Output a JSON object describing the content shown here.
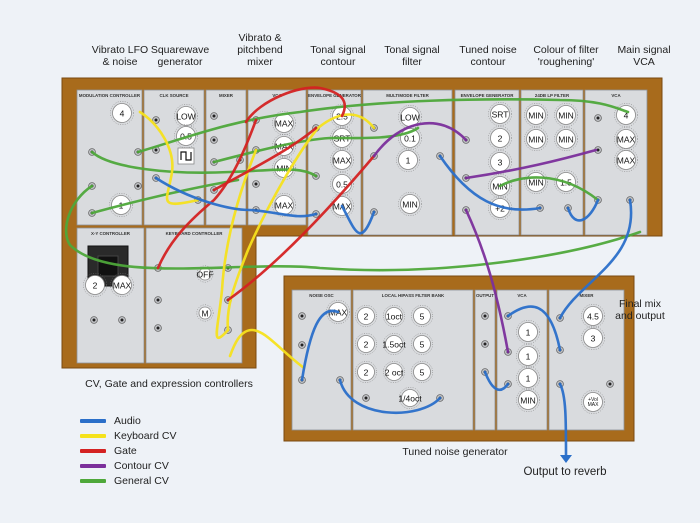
{
  "section_labels": {
    "vibrato_lfo": "Vibrato LFO\n& noise",
    "squarewave": "Squarewave\ngenerator",
    "vibrato_mixer": "Vibrato &\npitchbend\nmixer",
    "tonal_contour": "Tonal signal\ncontour",
    "tonal_filter": "Tonal signal\nfilter",
    "tuned_noise_contour": "Tuned noise\ncontour",
    "colour_filter": "Colour of filter\n'roughening'",
    "main_vca": "Main signal\nVCA",
    "final_mix": "Final mix\nand output",
    "cv_controllers": "CV, Gate and expression controllers",
    "tuned_noise_gen": "Tuned noise generator",
    "output": "Output to reverb"
  },
  "legend": [
    {
      "label": "Audio",
      "color": "#2a6fc9"
    },
    {
      "label": "Keyboard CV",
      "color": "#f5e21c"
    },
    {
      "label": "Gate",
      "color": "#d42222"
    },
    {
      "label": "Contour CV",
      "color": "#7b2f9b"
    },
    {
      "label": "General CV",
      "color": "#4ea83a"
    }
  ],
  "module_titles": {
    "modulation_controller": "MODULATION CONTROLLER",
    "clk_source": "CLK SOURCE",
    "mixer": "MIXER",
    "envelope_generator": "ENVELOPE GENERATOR",
    "multimode_filter": "MULTIMODE FILTER",
    "envelope_generator_2": "ENVELOPE GENERATOR",
    "lp_filter": "24DB LP FILTER",
    "vca": "VCA",
    "xy_controller": "X-Y CONTROLLER",
    "keyboard_controller": "KEYBOARD CONTROLLER",
    "noise_osc": "NOISE OSC",
    "filter_bank": "LOCAL HIPASS FILTER BANK",
    "output": "OUTPUT",
    "vca_2": "VCA",
    "mixer_2": "MIXER"
  },
  "knob_values": {
    "lfo_rate": "4",
    "lfo_depth": "1",
    "sq_a": "LOW",
    "sq_b": "0.5",
    "mx_a": "MAX",
    "mx_b": "MAX",
    "mx_c": "MIN",
    "mx_d": "MAX",
    "eg_a": "2.5",
    "eg_b": "SRT",
    "eg_c": "MAX",
    "eg_d": "0.5",
    "eg_e": "MAX",
    "fl_a": "LOW",
    "fl_b": "0.1",
    "fl_c": "1",
    "fl_d": "MIN",
    "eg2_a": "SRT",
    "eg2_b": "2",
    "eg2_c": "3",
    "eg2_d": "MIN",
    "eg2_e": "+2",
    "lp_a": "MIN",
    "lp_b": "MIN",
    "lp_c": "MIN",
    "lp_d": "MIN",
    "lp_e": "MIN",
    "lp_f": "1.5",
    "vca_a": "4",
    "vca_b": "MAX",
    "vca_c": "MAX",
    "xy_a": "2",
    "xy_b": "MAX",
    "kb_m": "M",
    "kb_off": "OFF",
    "no_a": "MAX",
    "fb_1": "2",
    "fb_2": "1oct",
    "fb_3": "5",
    "fb_4": "2",
    "fb_5": "1.5oct",
    "fb_6": "5",
    "fb_7": "2",
    "fb_8": "2 oct",
    "fb_9": "5",
    "fb_10": "1/4oct",
    "vc2_a": "1",
    "vc2_b": "1",
    "vc2_c": "1",
    "vc2_d": "MIN",
    "mx2_a": "4.5",
    "mx2_b": "3",
    "mx2_c": "+Vol\nMAX"
  }
}
